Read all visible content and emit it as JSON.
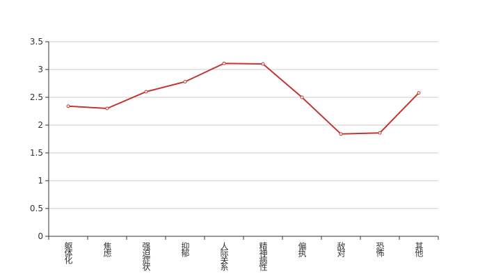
{
  "chart_data": {
    "type": "line",
    "categories": [
      "躯体化",
      "焦虑",
      "强迫症状",
      "抑郁",
      "人际关系",
      "精神病性",
      "偏执",
      "敌对",
      "恐怖",
      "其他"
    ],
    "values": [
      2.34,
      2.3,
      2.6,
      2.78,
      3.11,
      3.1,
      2.5,
      1.84,
      1.86,
      2.58
    ],
    "color": "#c23531",
    "ylim": [
      0,
      3.5
    ],
    "yticks": [
      0,
      0.5,
      1,
      1.5,
      2,
      2.5,
      3,
      3.5
    ],
    "grid": true
  }
}
